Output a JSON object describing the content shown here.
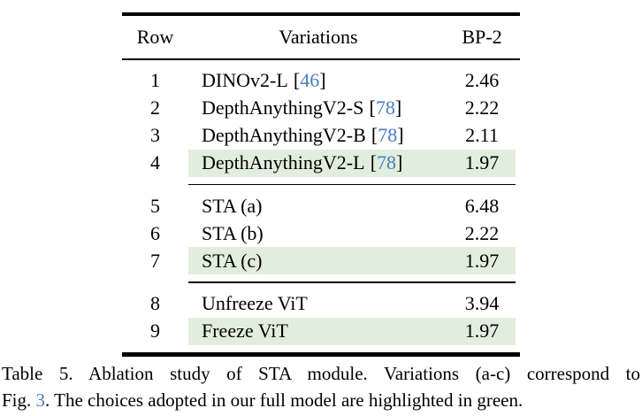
{
  "colors": {
    "highlight_green": "#e2eedd",
    "link_blue": "#4a7cbe",
    "rule_black": "#000000",
    "background": "#ffffff"
  },
  "table": {
    "headers": {
      "row": "Row",
      "variations": "Variations",
      "bp2": "BP-2"
    },
    "brackets": {
      "open": "[",
      "close": "]"
    },
    "sections": [
      {
        "rows": [
          {
            "num": "1",
            "label": "DINOv2-L",
            "cite": "46",
            "value": "2.46",
            "highlighted": false
          },
          {
            "num": "2",
            "label": "DepthAnythingV2-S",
            "cite": "78",
            "value": "2.22",
            "highlighted": false
          },
          {
            "num": "3",
            "label": "DepthAnythingV2-B",
            "cite": "78",
            "value": "2.11",
            "highlighted": false
          },
          {
            "num": "4",
            "label": "DepthAnythingV2-L",
            "cite": "78",
            "value": "1.97",
            "highlighted": true
          }
        ]
      },
      {
        "rows": [
          {
            "num": "5",
            "label": "STA (a)",
            "cite": null,
            "value": "6.48",
            "highlighted": false
          },
          {
            "num": "6",
            "label": "STA (b)",
            "cite": null,
            "value": "2.22",
            "highlighted": false
          },
          {
            "num": "7",
            "label": "STA (c)",
            "cite": null,
            "value": "1.97",
            "highlighted": true
          }
        ]
      },
      {
        "rows": [
          {
            "num": "8",
            "label": "Unfreeze ViT",
            "cite": null,
            "value": "3.94",
            "highlighted": false
          },
          {
            "num": "9",
            "label": "Freeze ViT",
            "cite": null,
            "value": "1.97",
            "highlighted": true
          }
        ]
      }
    ]
  },
  "caption": {
    "line1": "Table 5.  Ablation study of STA module.  Variations (a-c) correspond to",
    "line2_prefix": "Fig. ",
    "line2_link": "3",
    "line2_suffix": ". The choices adopted in our full model are highlighted in green."
  }
}
